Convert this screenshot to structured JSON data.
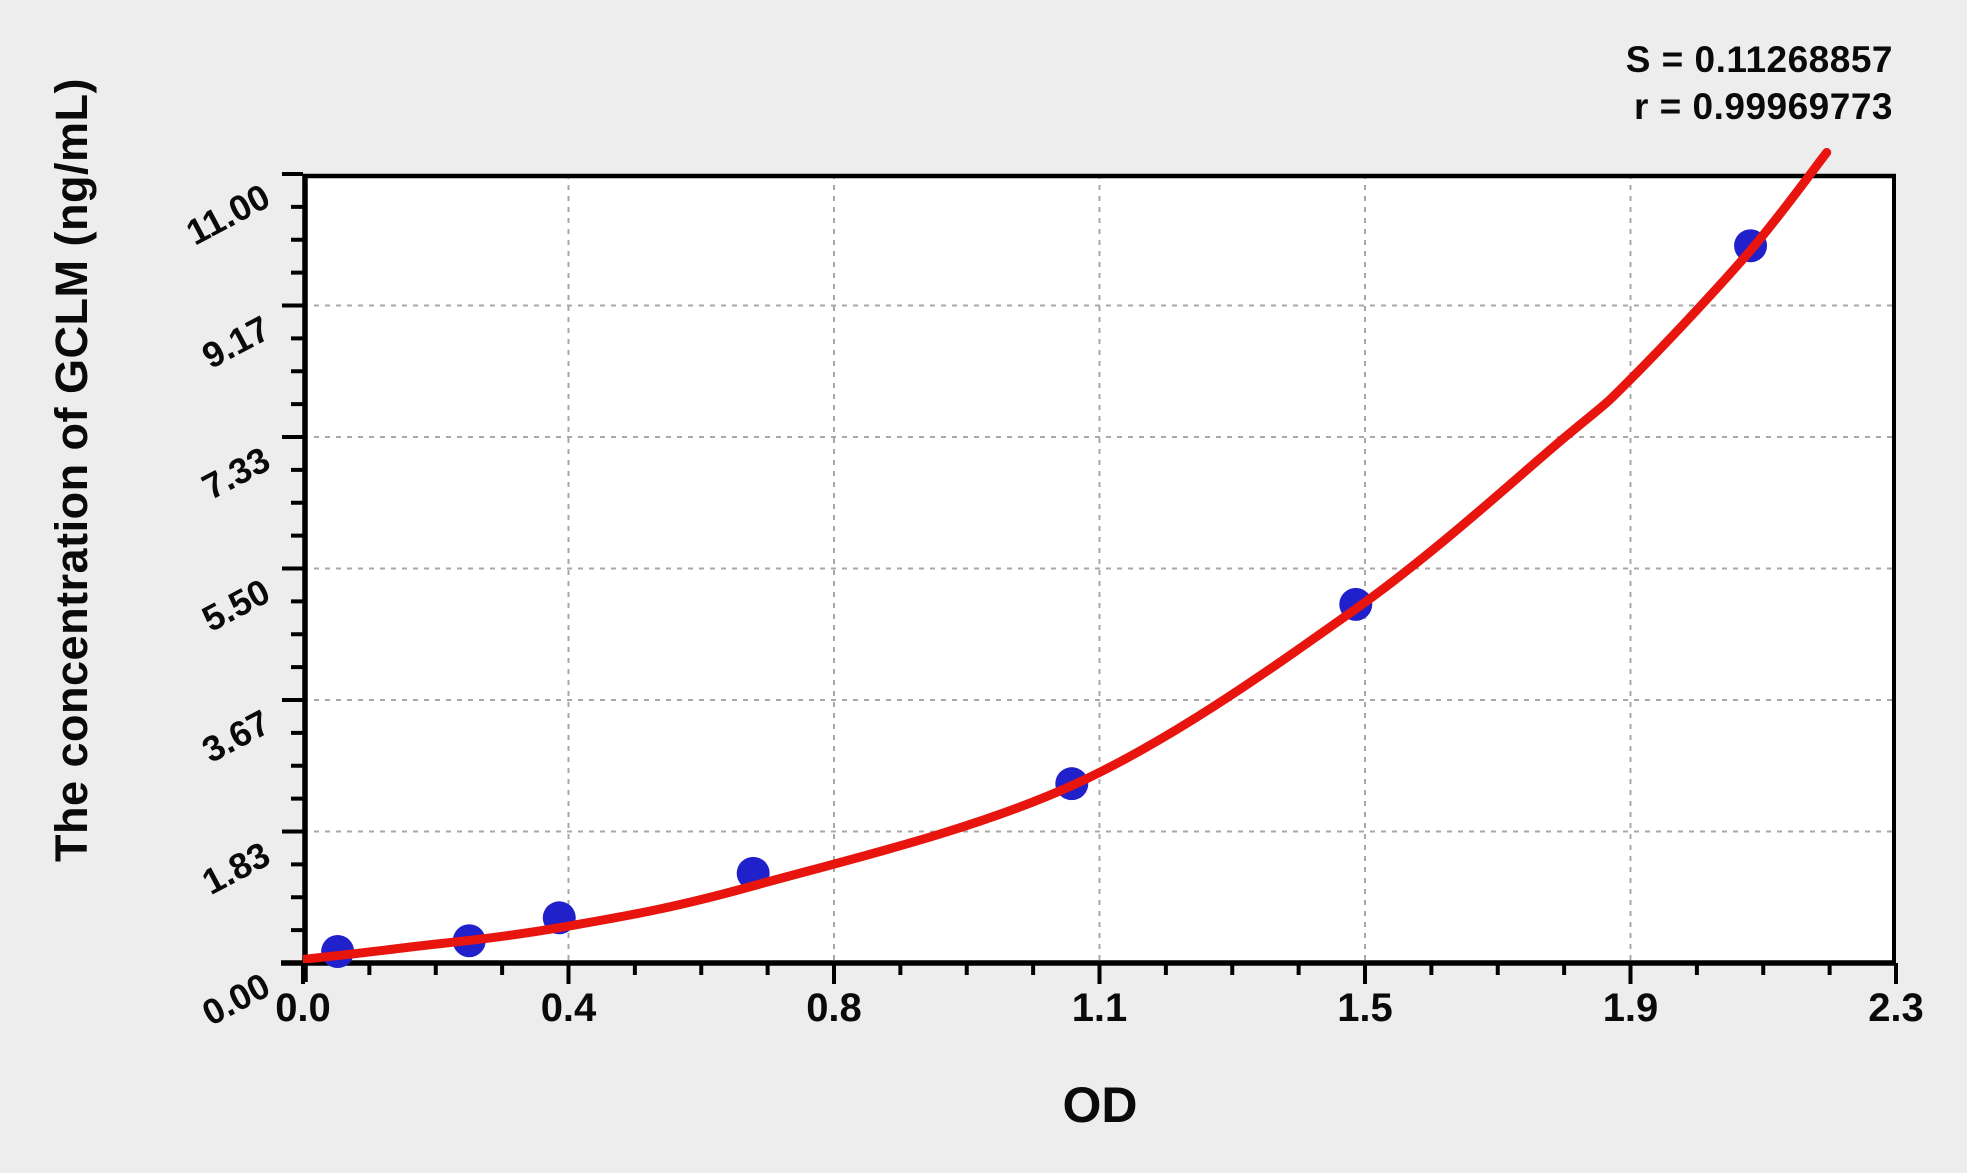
{
  "chart_data": {
    "type": "scatter",
    "title": "",
    "xlabel": "OD",
    "ylabel": "The concentration of GCLM (ng/mL)",
    "xlim": [
      0,
      2.3
    ],
    "ylim": [
      0,
      11
    ],
    "x_tick_labels": [
      "0.0",
      "0.4",
      "0.8",
      "1.1",
      "1.5",
      "1.9",
      "2.3"
    ],
    "y_tick_labels": [
      "0.00",
      "1.83",
      "3.67",
      "5.50",
      "7.33",
      "9.17",
      "11.00"
    ],
    "minor_divisions": 4,
    "grid": "dashed at major ticks",
    "legend_position": "none",
    "series": [
      {
        "name": "standard-points",
        "type": "scatter",
        "od": [
          0.05,
          0.24,
          0.37,
          0.65,
          1.11,
          1.52,
          2.09
        ],
        "concentration": [
          0.16,
          0.31,
          0.63,
          1.25,
          2.5,
          5,
          10
        ]
      },
      {
        "name": "fitted-curve",
        "type": "line",
        "od": [
          0,
          0.145,
          0.375,
          0.652,
          1.114,
          1.519,
          1.822,
          1.917,
          2.086,
          2.2
        ],
        "concentration": [
          0.05,
          0.21,
          0.5,
          1.08,
          2.49,
          4.93,
          7.33,
          8.14,
          9.89,
          11.3
        ]
      }
    ],
    "annotations": {
      "s_label": "S = 0.11268857",
      "r_label": "r = 0.99969773",
      "s_value": "0.11268857",
      "r_value": "0.99969773"
    }
  },
  "colors": {
    "background": "#ededed",
    "plot_background": "#ffffff",
    "axis": "#000000",
    "grid": "#a8a8a8",
    "point": "#2121cc",
    "curve": "#e8140e",
    "text": "#0a0a0a"
  }
}
